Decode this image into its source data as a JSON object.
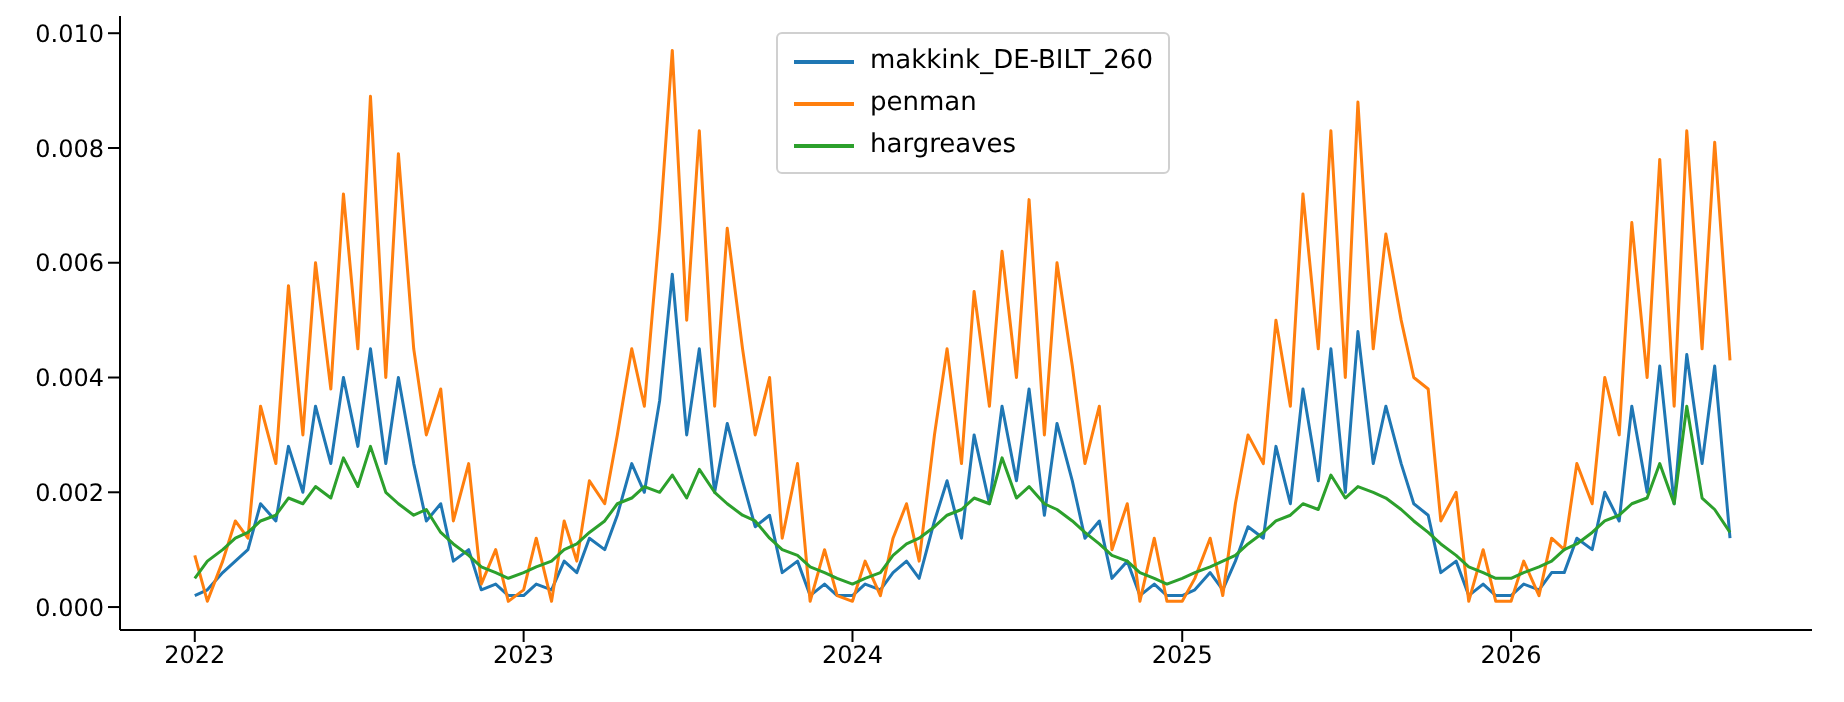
{
  "chart_data": {
    "type": "line",
    "xlim": [
      "2021-10-10",
      "2026-12-01"
    ],
    "xticks": [
      "2022",
      "2023",
      "2024",
      "2025",
      "2026"
    ],
    "ylim": [
      -0.0004,
      0.0103
    ],
    "yticks": [
      {
        "value": 0,
        "label": "0.000"
      },
      {
        "value": 0.002,
        "label": "0.002"
      },
      {
        "value": 0.004,
        "label": "0.004"
      },
      {
        "value": 0.006,
        "label": "0.006"
      },
      {
        "value": 0.008,
        "label": "0.008"
      },
      {
        "value": 0.01,
        "label": "0.010"
      }
    ],
    "grid": false,
    "legend": "top",
    "marker": "none",
    "line_style": "solid",
    "x": [
      "2022-01-01",
      "2022-01-15",
      "2022-02-01",
      "2022-02-15",
      "2022-03-01",
      "2022-03-15",
      "2022-04-01",
      "2022-04-15",
      "2022-05-01",
      "2022-05-15",
      "2022-06-01",
      "2022-06-15",
      "2022-07-01",
      "2022-07-15",
      "2022-08-01",
      "2022-08-15",
      "2022-09-01",
      "2022-09-15",
      "2022-10-01",
      "2022-10-15",
      "2022-11-01",
      "2022-11-15",
      "2022-12-01",
      "2022-12-15",
      "2023-01-01",
      "2023-01-15",
      "2023-02-01",
      "2023-02-15",
      "2023-03-01",
      "2023-03-15",
      "2023-04-01",
      "2023-04-15",
      "2023-05-01",
      "2023-05-15",
      "2023-06-01",
      "2023-06-15",
      "2023-07-01",
      "2023-07-15",
      "2023-08-01",
      "2023-08-15",
      "2023-09-01",
      "2023-09-15",
      "2023-10-01",
      "2023-10-15",
      "2023-11-01",
      "2023-11-15",
      "2023-12-01",
      "2023-12-15",
      "2024-01-01",
      "2024-01-15",
      "2024-02-01",
      "2024-02-15",
      "2024-03-01",
      "2024-03-15",
      "2024-04-01",
      "2024-04-15",
      "2024-05-01",
      "2024-05-15",
      "2024-06-01",
      "2024-06-15",
      "2024-07-01",
      "2024-07-15",
      "2024-08-01",
      "2024-08-15",
      "2024-09-01",
      "2024-09-15",
      "2024-10-01",
      "2024-10-15",
      "2024-11-01",
      "2024-11-15",
      "2024-12-01",
      "2024-12-15",
      "2025-01-01",
      "2025-01-15",
      "2025-02-01",
      "2025-02-15",
      "2025-03-01",
      "2025-03-15",
      "2025-04-01",
      "2025-04-15",
      "2025-05-01",
      "2025-05-15",
      "2025-06-01",
      "2025-06-15",
      "2025-07-01",
      "2025-07-15",
      "2025-08-01",
      "2025-08-15",
      "2025-09-01",
      "2025-09-15",
      "2025-10-01",
      "2025-10-15",
      "2025-11-01",
      "2025-11-15",
      "2025-12-01",
      "2025-12-15",
      "2026-01-01",
      "2026-01-15",
      "2026-02-01",
      "2026-02-15",
      "2026-03-01",
      "2026-03-15",
      "2026-04-01",
      "2026-04-15",
      "2026-05-01",
      "2026-05-15",
      "2026-06-01",
      "2026-06-15",
      "2026-07-01",
      "2026-07-15",
      "2026-08-01",
      "2026-08-15",
      "2026-09-01"
    ],
    "series": [
      {
        "name": "makkink_DE-BILT_260",
        "color": "#1f77b4",
        "values": [
          0.0002,
          0.0003,
          0.0006,
          0.0008,
          0.001,
          0.0018,
          0.0015,
          0.0028,
          0.002,
          0.0035,
          0.0025,
          0.004,
          0.0028,
          0.0045,
          0.0025,
          0.004,
          0.0025,
          0.0015,
          0.0018,
          0.0008,
          0.001,
          0.0003,
          0.0004,
          0.0002,
          0.0002,
          0.0004,
          0.0003,
          0.0008,
          0.0006,
          0.0012,
          0.001,
          0.0016,
          0.0025,
          0.002,
          0.0036,
          0.0058,
          0.003,
          0.0045,
          0.002,
          0.0032,
          0.0022,
          0.0014,
          0.0016,
          0.0006,
          0.0008,
          0.0002,
          0.0004,
          0.0002,
          0.0002,
          0.0004,
          0.0003,
          0.0006,
          0.0008,
          0.0005,
          0.0015,
          0.0022,
          0.0012,
          0.003,
          0.0018,
          0.0035,
          0.0022,
          0.0038,
          0.0016,
          0.0032,
          0.0022,
          0.0012,
          0.0015,
          0.0005,
          0.0008,
          0.0002,
          0.0004,
          0.0002,
          0.0002,
          0.0003,
          0.0006,
          0.0003,
          0.0008,
          0.0014,
          0.0012,
          0.0028,
          0.0018,
          0.0038,
          0.0022,
          0.0045,
          0.002,
          0.0048,
          0.0025,
          0.0035,
          0.0025,
          0.0018,
          0.0016,
          0.0006,
          0.0008,
          0.0002,
          0.0004,
          0.0002,
          0.0002,
          0.0004,
          0.0003,
          0.0006,
          0.0006,
          0.0012,
          0.001,
          0.002,
          0.0015,
          0.0035,
          0.002,
          0.0042,
          0.0018,
          0.0044,
          0.0025,
          0.0042,
          0.0012
        ]
      },
      {
        "name": "penman",
        "color": "#ff7f0e",
        "values": [
          0.0009,
          0.0001,
          0.0008,
          0.0015,
          0.0012,
          0.0035,
          0.0025,
          0.0056,
          0.003,
          0.006,
          0.0038,
          0.0072,
          0.0045,
          0.0089,
          0.004,
          0.0079,
          0.0045,
          0.003,
          0.0038,
          0.0015,
          0.0025,
          0.0004,
          0.001,
          0.0001,
          0.0003,
          0.0012,
          0.0001,
          0.0015,
          0.0008,
          0.0022,
          0.0018,
          0.003,
          0.0045,
          0.0035,
          0.0066,
          0.0097,
          0.005,
          0.0083,
          0.0035,
          0.0066,
          0.0045,
          0.003,
          0.004,
          0.0012,
          0.0025,
          0.0001,
          0.001,
          0.0002,
          0.0001,
          0.0008,
          0.0002,
          0.0012,
          0.0018,
          0.0008,
          0.003,
          0.0045,
          0.0025,
          0.0055,
          0.0035,
          0.0062,
          0.004,
          0.0071,
          0.003,
          0.006,
          0.0042,
          0.0025,
          0.0035,
          0.001,
          0.0018,
          0.0001,
          0.0012,
          0.0001,
          0.0001,
          0.0005,
          0.0012,
          0.0002,
          0.0018,
          0.003,
          0.0025,
          0.005,
          0.0035,
          0.0072,
          0.0045,
          0.0083,
          0.004,
          0.0088,
          0.0045,
          0.0065,
          0.005,
          0.004,
          0.0038,
          0.0015,
          0.002,
          0.0001,
          0.001,
          0.0001,
          0.0001,
          0.0008,
          0.0002,
          0.0012,
          0.001,
          0.0025,
          0.0018,
          0.004,
          0.003,
          0.0067,
          0.004,
          0.0078,
          0.0035,
          0.0083,
          0.0045,
          0.0081,
          0.0043
        ]
      },
      {
        "name": "hargreaves",
        "color": "#2ca02c",
        "values": [
          0.0005,
          0.0008,
          0.001,
          0.0012,
          0.0013,
          0.0015,
          0.0016,
          0.0019,
          0.0018,
          0.0021,
          0.0019,
          0.0026,
          0.0021,
          0.0028,
          0.002,
          0.0018,
          0.0016,
          0.0017,
          0.0013,
          0.0011,
          0.0009,
          0.0007,
          0.0006,
          0.0005,
          0.0006,
          0.0007,
          0.0008,
          0.001,
          0.0011,
          0.0013,
          0.0015,
          0.0018,
          0.0019,
          0.0021,
          0.002,
          0.0023,
          0.0019,
          0.0024,
          0.002,
          0.0018,
          0.0016,
          0.0015,
          0.0012,
          0.001,
          0.0009,
          0.0007,
          0.0006,
          0.0005,
          0.0004,
          0.0005,
          0.0006,
          0.0009,
          0.0011,
          0.0012,
          0.0014,
          0.0016,
          0.0017,
          0.0019,
          0.0018,
          0.0026,
          0.0019,
          0.0021,
          0.0018,
          0.0017,
          0.0015,
          0.0013,
          0.0011,
          0.0009,
          0.0008,
          0.0006,
          0.0005,
          0.0004,
          0.0005,
          0.0006,
          0.0007,
          0.0008,
          0.0009,
          0.0011,
          0.0013,
          0.0015,
          0.0016,
          0.0018,
          0.0017,
          0.0023,
          0.0019,
          0.0021,
          0.002,
          0.0019,
          0.0017,
          0.0015,
          0.0013,
          0.0011,
          0.0009,
          0.0007,
          0.0006,
          0.0005,
          0.0005,
          0.0006,
          0.0007,
          0.0008,
          0.001,
          0.0011,
          0.0013,
          0.0015,
          0.0016,
          0.0018,
          0.0019,
          0.0025,
          0.0018,
          0.0035,
          0.0019,
          0.0017,
          0.0013
        ]
      }
    ]
  }
}
